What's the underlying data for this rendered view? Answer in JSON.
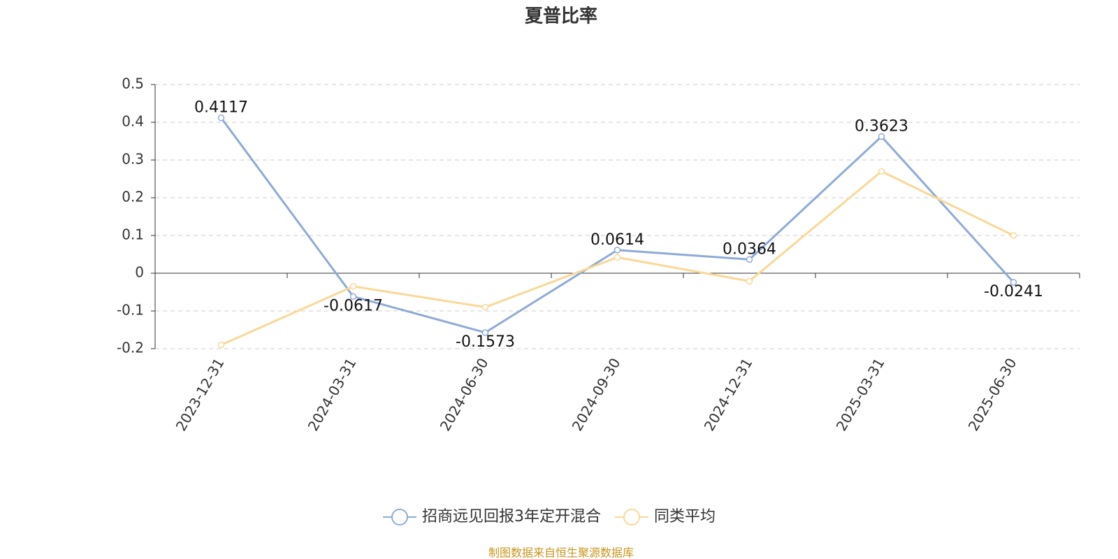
{
  "chart_data": {
    "type": "line",
    "title": "夏普比率",
    "categories": [
      "2023-12-31",
      "2024-03-31",
      "2024-06-30",
      "2024-09-30",
      "2024-12-31",
      "2025-03-31",
      "2025-06-30"
    ],
    "series": [
      {
        "name": "招商远见回报3年定开混合",
        "color": "#8eaad8",
        "values": [
          0.4117,
          -0.0617,
          -0.1573,
          0.0614,
          0.0364,
          0.3623,
          -0.0241
        ],
        "show_labels": true
      },
      {
        "name": "同类平均",
        "color": "#fad897",
        "values": [
          -0.19,
          -0.035,
          -0.09,
          0.042,
          -0.021,
          0.27,
          0.1
        ],
        "show_labels": false
      }
    ],
    "ylim": [
      -0.2,
      0.5
    ],
    "yticks": [
      -0.2,
      -0.1,
      0,
      0.1,
      0.2,
      0.3,
      0.4,
      0.5
    ],
    "grid": true,
    "source": "制图数据来自恒生聚源数据库"
  }
}
